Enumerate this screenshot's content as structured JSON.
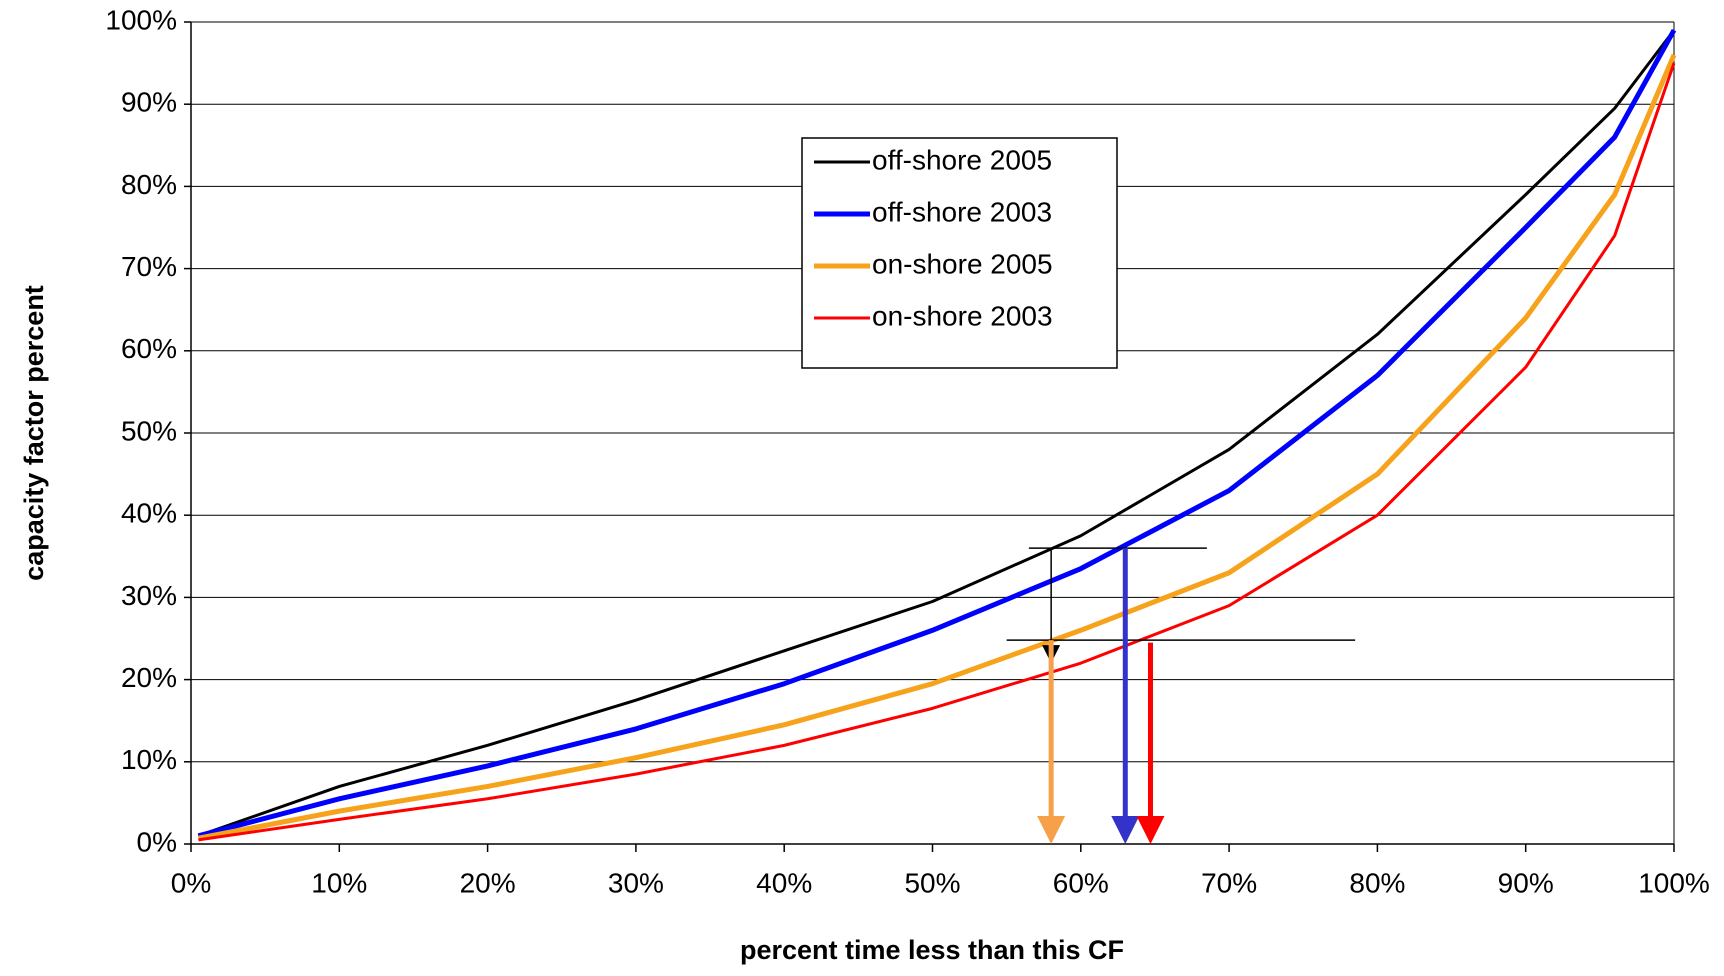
{
  "chart_data": {
    "type": "line",
    "xlabel": "percent time less than this CF",
    "ylabel": "capacity factor percent",
    "x": [
      0.5,
      10,
      20,
      30,
      40,
      50,
      60,
      70,
      80,
      90,
      96,
      100
    ],
    "series": [
      {
        "name": "off-shore 2005",
        "color": "#000000",
        "width": 3,
        "values": [
          1,
          7,
          12,
          17.5,
          23.5,
          29.5,
          37.5,
          48,
          62,
          79,
          89.5,
          99
        ]
      },
      {
        "name": "off-shore 2003",
        "color": "#0000ff",
        "width": 5,
        "values": [
          1,
          5.5,
          9.5,
          14,
          19.5,
          26,
          33.5,
          43,
          57,
          75,
          86,
          99
        ]
      },
      {
        "name": "on-shore 2005",
        "color": "#f7a21b",
        "width": 5,
        "values": [
          0.7,
          4,
          7,
          10.5,
          14.5,
          19.5,
          26,
          33,
          45,
          64,
          79,
          96
        ]
      },
      {
        "name": "on-shore 2003",
        "color": "#ff0000",
        "width": 3,
        "values": [
          0.5,
          3,
          5.5,
          8.5,
          12,
          16.5,
          22,
          29,
          40,
          58,
          74,
          95
        ]
      }
    ],
    "xlim": [
      0,
      100
    ],
    "ylim": [
      0,
      100
    ],
    "xticks": [
      {
        "value": 0,
        "label": "0%"
      },
      {
        "value": 10,
        "label": "10%"
      },
      {
        "value": 20,
        "label": "20%"
      },
      {
        "value": 30,
        "label": "30%"
      },
      {
        "value": 40,
        "label": "40%"
      },
      {
        "value": 50,
        "label": "50%"
      },
      {
        "value": 60,
        "label": "60%"
      },
      {
        "value": 70,
        "label": "70%"
      },
      {
        "value": 80,
        "label": "80%"
      },
      {
        "value": 90,
        "label": "90%"
      },
      {
        "value": 100,
        "label": "100%"
      }
    ],
    "yticks": [
      {
        "value": 0,
        "label": "0%"
      },
      {
        "value": 10,
        "label": "10%"
      },
      {
        "value": 20,
        "label": "20%"
      },
      {
        "value": 30,
        "label": "30%"
      },
      {
        "value": 40,
        "label": "40%"
      },
      {
        "value": 50,
        "label": "50%"
      },
      {
        "value": 60,
        "label": "60%"
      },
      {
        "value": 70,
        "label": "70%"
      },
      {
        "value": 80,
        "label": "80%"
      },
      {
        "value": 90,
        "label": "90%"
      },
      {
        "value": 100,
        "label": "100%"
      }
    ],
    "grid": true,
    "reference_lines": [
      {
        "y": 36,
        "x_from": 56.5,
        "x_to": 68.5
      },
      {
        "y": 24.8,
        "x_from": 55,
        "x_to": 78.5
      }
    ],
    "arrows": [
      {
        "x": 58,
        "y_from": 36,
        "y_to": 22,
        "color": "#000000"
      },
      {
        "x": 58,
        "y_from": 24.8,
        "y_to": 0,
        "color": "#f7a04a"
      },
      {
        "x": 63,
        "y_from": 36,
        "y_to": 0,
        "color": "#3333cc"
      },
      {
        "x": 64.7,
        "y_from": 24.5,
        "y_to": 0,
        "color": "#ff0000"
      }
    ]
  }
}
